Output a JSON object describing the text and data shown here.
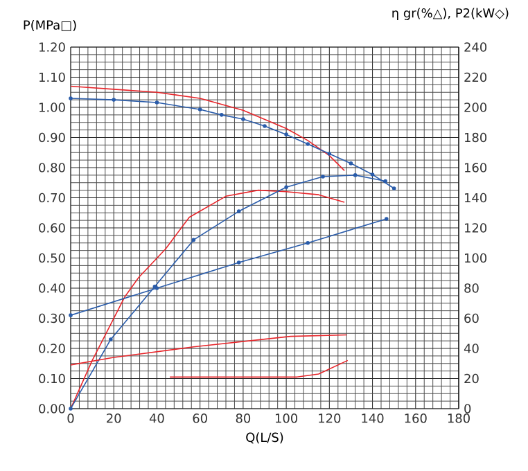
{
  "chart_data": {
    "type": "line",
    "xlabel": "Q(L/S)",
    "ylabel": "P(MPa□)",
    "y2label": "η gr(%△), P2(kW◇)",
    "series": [
      {
        "color": "#e8262b",
        "marker": "none",
        "x": [
          0,
          20,
          40,
          60,
          80,
          100,
          110,
          120,
          127
        ],
        "values": [
          1.07,
          1.06,
          1.05,
          1.03,
          0.99,
          0.93,
          0.89,
          0.84,
          0.79
        ]
      },
      {
        "color": "#2a5caa",
        "marker": "circle",
        "x": [
          0,
          20,
          40,
          60,
          70,
          80,
          90,
          100,
          110,
          120,
          130,
          140,
          150
        ],
        "values": [
          1.03,
          1.025,
          1.016,
          0.993,
          0.975,
          0.961,
          0.938,
          0.91,
          0.878,
          0.846,
          0.814,
          0.777,
          0.731
        ]
      },
      {
        "color": "#e8262b",
        "marker": "none",
        "axis": "y2",
        "x": [
          0,
          10,
          25,
          31.5,
          44,
          55,
          72,
          87,
          100,
          115,
          127
        ],
        "values": [
          0,
          32,
          74,
          87,
          106,
          127,
          141,
          145,
          144,
          142,
          137
        ]
      },
      {
        "color": "#2a5caa",
        "marker": "circle",
        "axis": "y2",
        "x": [
          0,
          18.6,
          39,
          57,
          78,
          100,
          117,
          132,
          146
        ],
        "values": [
          0,
          46,
          81,
          112,
          131,
          147,
          154,
          155,
          151
        ]
      },
      {
        "color": "#2a5caa",
        "marker": "circle",
        "axis": "y2",
        "x": [
          0,
          40,
          78,
          110,
          146.5
        ],
        "values": [
          62,
          80,
          97,
          110,
          126
        ]
      },
      {
        "color": "#e8262b",
        "marker": "none",
        "axis": "y2",
        "x": [
          0,
          20,
          57,
          102,
          128
        ],
        "values": [
          29,
          34,
          41,
          48,
          49
        ]
      },
      {
        "color": "#e8262b",
        "marker": "none",
        "axis": "y2",
        "x": [
          46,
          105,
          115,
          128.5
        ],
        "values": [
          21,
          21,
          23,
          32
        ]
      }
    ],
    "xlim": [
      0,
      180
    ],
    "xticks": [
      0,
      20,
      40,
      60,
      80,
      100,
      120,
      140,
      160,
      180
    ],
    "ylim": [
      0,
      1.2
    ],
    "yticks": [
      {
        "value": 0,
        "label": "0.00"
      },
      {
        "value": 0.1,
        "label": "0.10"
      },
      {
        "value": 0.2,
        "label": "0.20"
      },
      {
        "value": 0.3,
        "label": "0.30"
      },
      {
        "value": 0.4,
        "label": "0.40"
      },
      {
        "value": 0.5,
        "label": "0.50"
      },
      {
        "value": 0.6,
        "label": "0.60"
      },
      {
        "value": 0.7,
        "label": "0.70"
      },
      {
        "value": 0.8,
        "label": "0.80"
      },
      {
        "value": 0.9,
        "label": "0.90"
      },
      {
        "value": 1.0,
        "label": "1.00"
      },
      {
        "value": 1.1,
        "label": "1.10"
      },
      {
        "value": 1.2,
        "label": "1.20"
      }
    ],
    "y2lim": [
      0,
      240
    ],
    "y2ticks": [
      0,
      20,
      40,
      60,
      80,
      100,
      120,
      140,
      160,
      180,
      200,
      220,
      240
    ],
    "grid": true
  }
}
